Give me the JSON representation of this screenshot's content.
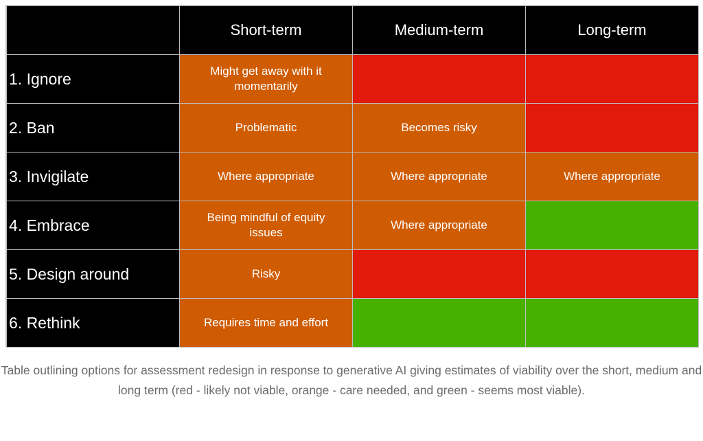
{
  "table": {
    "columns": [
      "Short-term",
      "Medium-term",
      "Long-term"
    ],
    "rows": [
      {
        "label": "1. Ignore",
        "cells": [
          {
            "status": "orange",
            "text": "Might get away with it momentarily"
          },
          {
            "status": "red",
            "text": ""
          },
          {
            "status": "red",
            "text": ""
          }
        ]
      },
      {
        "label": "2. Ban",
        "cells": [
          {
            "status": "orange",
            "text": "Problematic"
          },
          {
            "status": "orange",
            "text": "Becomes risky"
          },
          {
            "status": "red",
            "text": ""
          }
        ]
      },
      {
        "label": "3. Invigilate",
        "cells": [
          {
            "status": "orange",
            "text": "Where appropriate"
          },
          {
            "status": "orange",
            "text": "Where appropriate"
          },
          {
            "status": "orange",
            "text": "Where appropriate"
          }
        ]
      },
      {
        "label": "4. Embrace",
        "cells": [
          {
            "status": "orange",
            "text": "Being mindful of equity issues"
          },
          {
            "status": "orange",
            "text": "Where appropriate"
          },
          {
            "status": "green",
            "text": ""
          }
        ]
      },
      {
        "label": "5. Design around",
        "cells": [
          {
            "status": "orange",
            "text": "Risky"
          },
          {
            "status": "red",
            "text": ""
          },
          {
            "status": "red",
            "text": ""
          }
        ]
      },
      {
        "label": "6. Rethink",
        "cells": [
          {
            "status": "orange",
            "text": "Requires time and effort"
          },
          {
            "status": "green",
            "text": ""
          },
          {
            "status": "green",
            "text": ""
          }
        ]
      }
    ]
  },
  "colors": {
    "red": "#e2190d",
    "orange": "#cf5b02",
    "green": "#47b101",
    "header_bg": "#000000",
    "caption_text": "#6b6b6b"
  },
  "caption": "Table outlining options for assessment redesign in response to generative AI giving estimates of viability over the short, medium and long term (red - likely not viable, orange - care needed, and green - seems most viable)."
}
